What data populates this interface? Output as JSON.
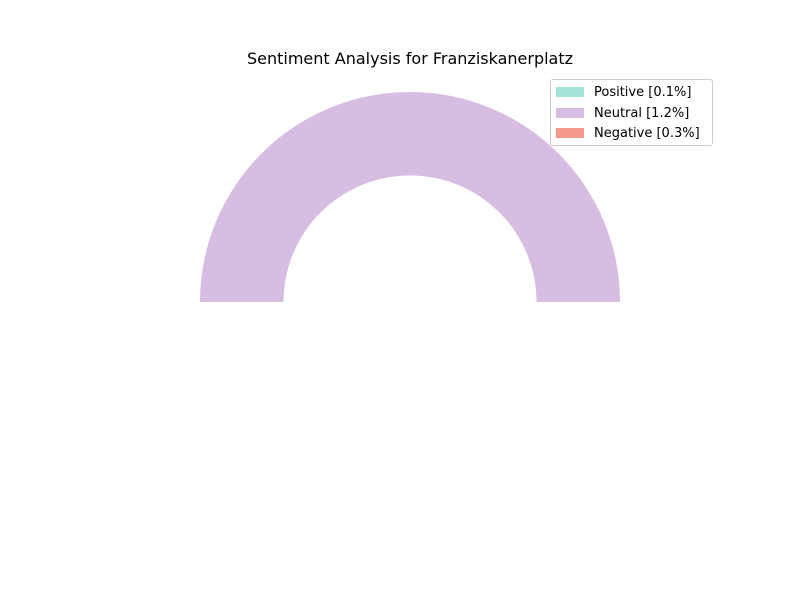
{
  "chart_data": {
    "type": "pie",
    "style": "half-donut",
    "title": "Sentiment Analysis for Franziskanerplatz",
    "categories": [
      "Positive",
      "Neutral",
      "Negative"
    ],
    "values": [
      0.1,
      1.2,
      0.3
    ],
    "colors": [
      "#a3e4d7",
      "#d7bde2",
      "#f5978a"
    ],
    "visible_slice": "Neutral",
    "legend": {
      "placement": "top-right",
      "entries": [
        "Positive [0.1%]",
        "Neutral [1.2%]",
        "Negative [0.3%]"
      ]
    }
  }
}
